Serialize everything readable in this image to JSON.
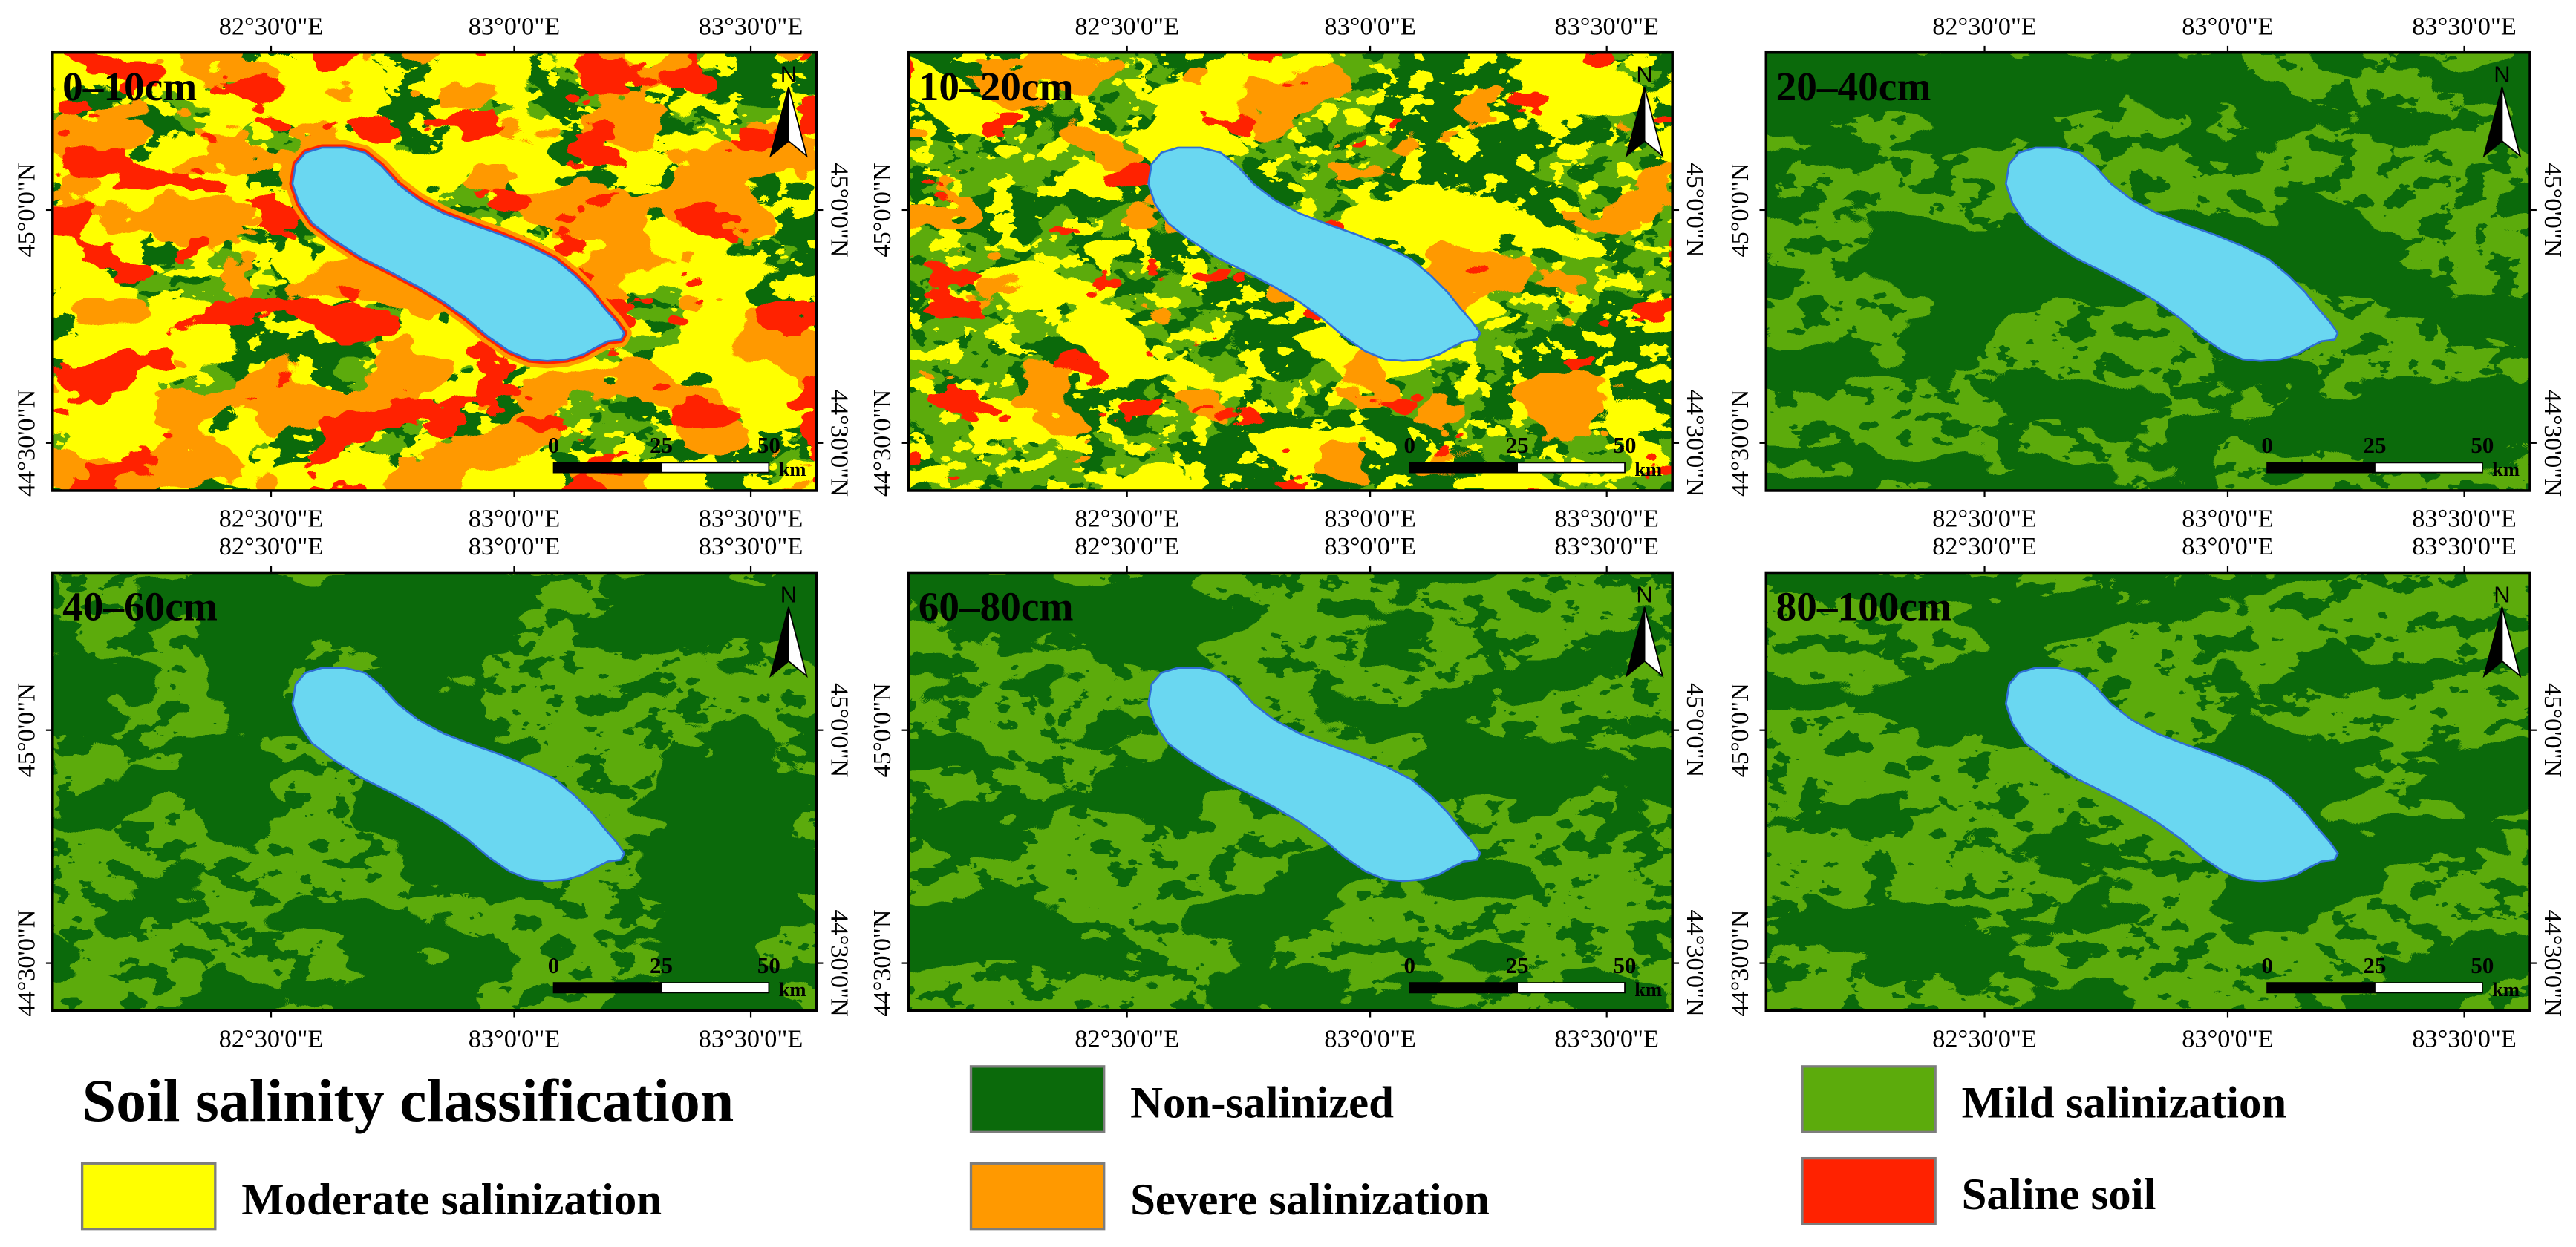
{
  "panels": [
    {
      "label": "0–10cm"
    },
    {
      "label": "10–20cm"
    },
    {
      "label": "20–40cm"
    },
    {
      "label": "40–60cm"
    },
    {
      "label": "60–80cm"
    },
    {
      "label": "80–100cm"
    }
  ],
  "graticule": {
    "longitude_labels": [
      "82°30'0\"E",
      "83°0'0\"E",
      "83°30'0\"E"
    ],
    "latitude_labels": [
      "45°0'0\"N",
      "44°30'0\"N"
    ]
  },
  "north_arrow": {
    "label": "N"
  },
  "scale_bar": {
    "tick_labels": [
      "0",
      "25",
      "50"
    ],
    "unit": "km"
  },
  "legend": {
    "title": "Soil salinity classification",
    "items": [
      {
        "label": "Non-salinized",
        "color": "#0b6a0b"
      },
      {
        "label": "Mild salinization",
        "color": "#5cab0c"
      },
      {
        "label": "Moderate salinization",
        "color": "#ffff00"
      },
      {
        "label": "Severe salinization",
        "color": "#ff9900"
      },
      {
        "label": "Saline soil",
        "color": "#ff2200"
      }
    ]
  },
  "lake": {
    "color": "#6ad7f1",
    "outline_color": "#2f6fd6"
  }
}
